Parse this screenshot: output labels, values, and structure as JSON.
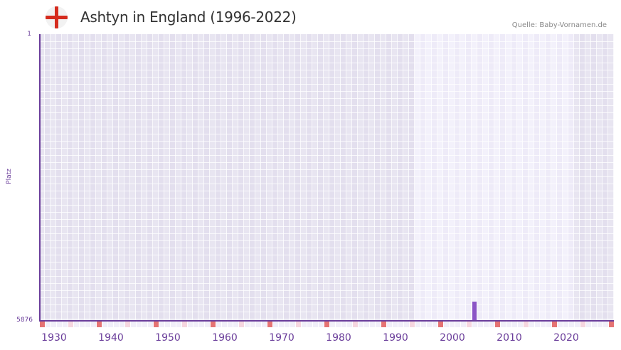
{
  "header": {
    "title": "Ashtyn in England (1996-2022)",
    "source": "Quelle: Baby-Vornamen.de",
    "flag_icon": "england-flag-icon"
  },
  "colors": {
    "axis": "#6a3d9a",
    "bar": "#8b55c6",
    "grid_dark_a": "#e3dfee",
    "grid_dark_b": "#e8e5f1",
    "grid_light_a": "#eeebf8",
    "grid_light_b": "#f3f1fb",
    "decade_marker": "#e57373",
    "half_decade_marker": "#f6d6df",
    "strip_bg": "#f1eff9"
  },
  "chart_data": {
    "type": "bar",
    "title": "Ashtyn in England (1996-2022)",
    "xlabel": "",
    "ylabel": "Platz",
    "x_range": [
      1928,
      2028
    ],
    "ylim": [
      5876,
      1
    ],
    "y_inverted": true,
    "y_ticks": [
      "1",
      "5876"
    ],
    "x_ticks": [
      "1930",
      "1940",
      "1950",
      "1960",
      "1970",
      "1980",
      "1990",
      "2000",
      "2010",
      "2020"
    ],
    "highlight_range": [
      1994,
      2021
    ],
    "series": [
      {
        "name": "Ashtyn",
        "points": [
          {
            "year": 2004,
            "rank": 5500
          }
        ]
      }
    ],
    "grid": true,
    "legend": "none"
  }
}
